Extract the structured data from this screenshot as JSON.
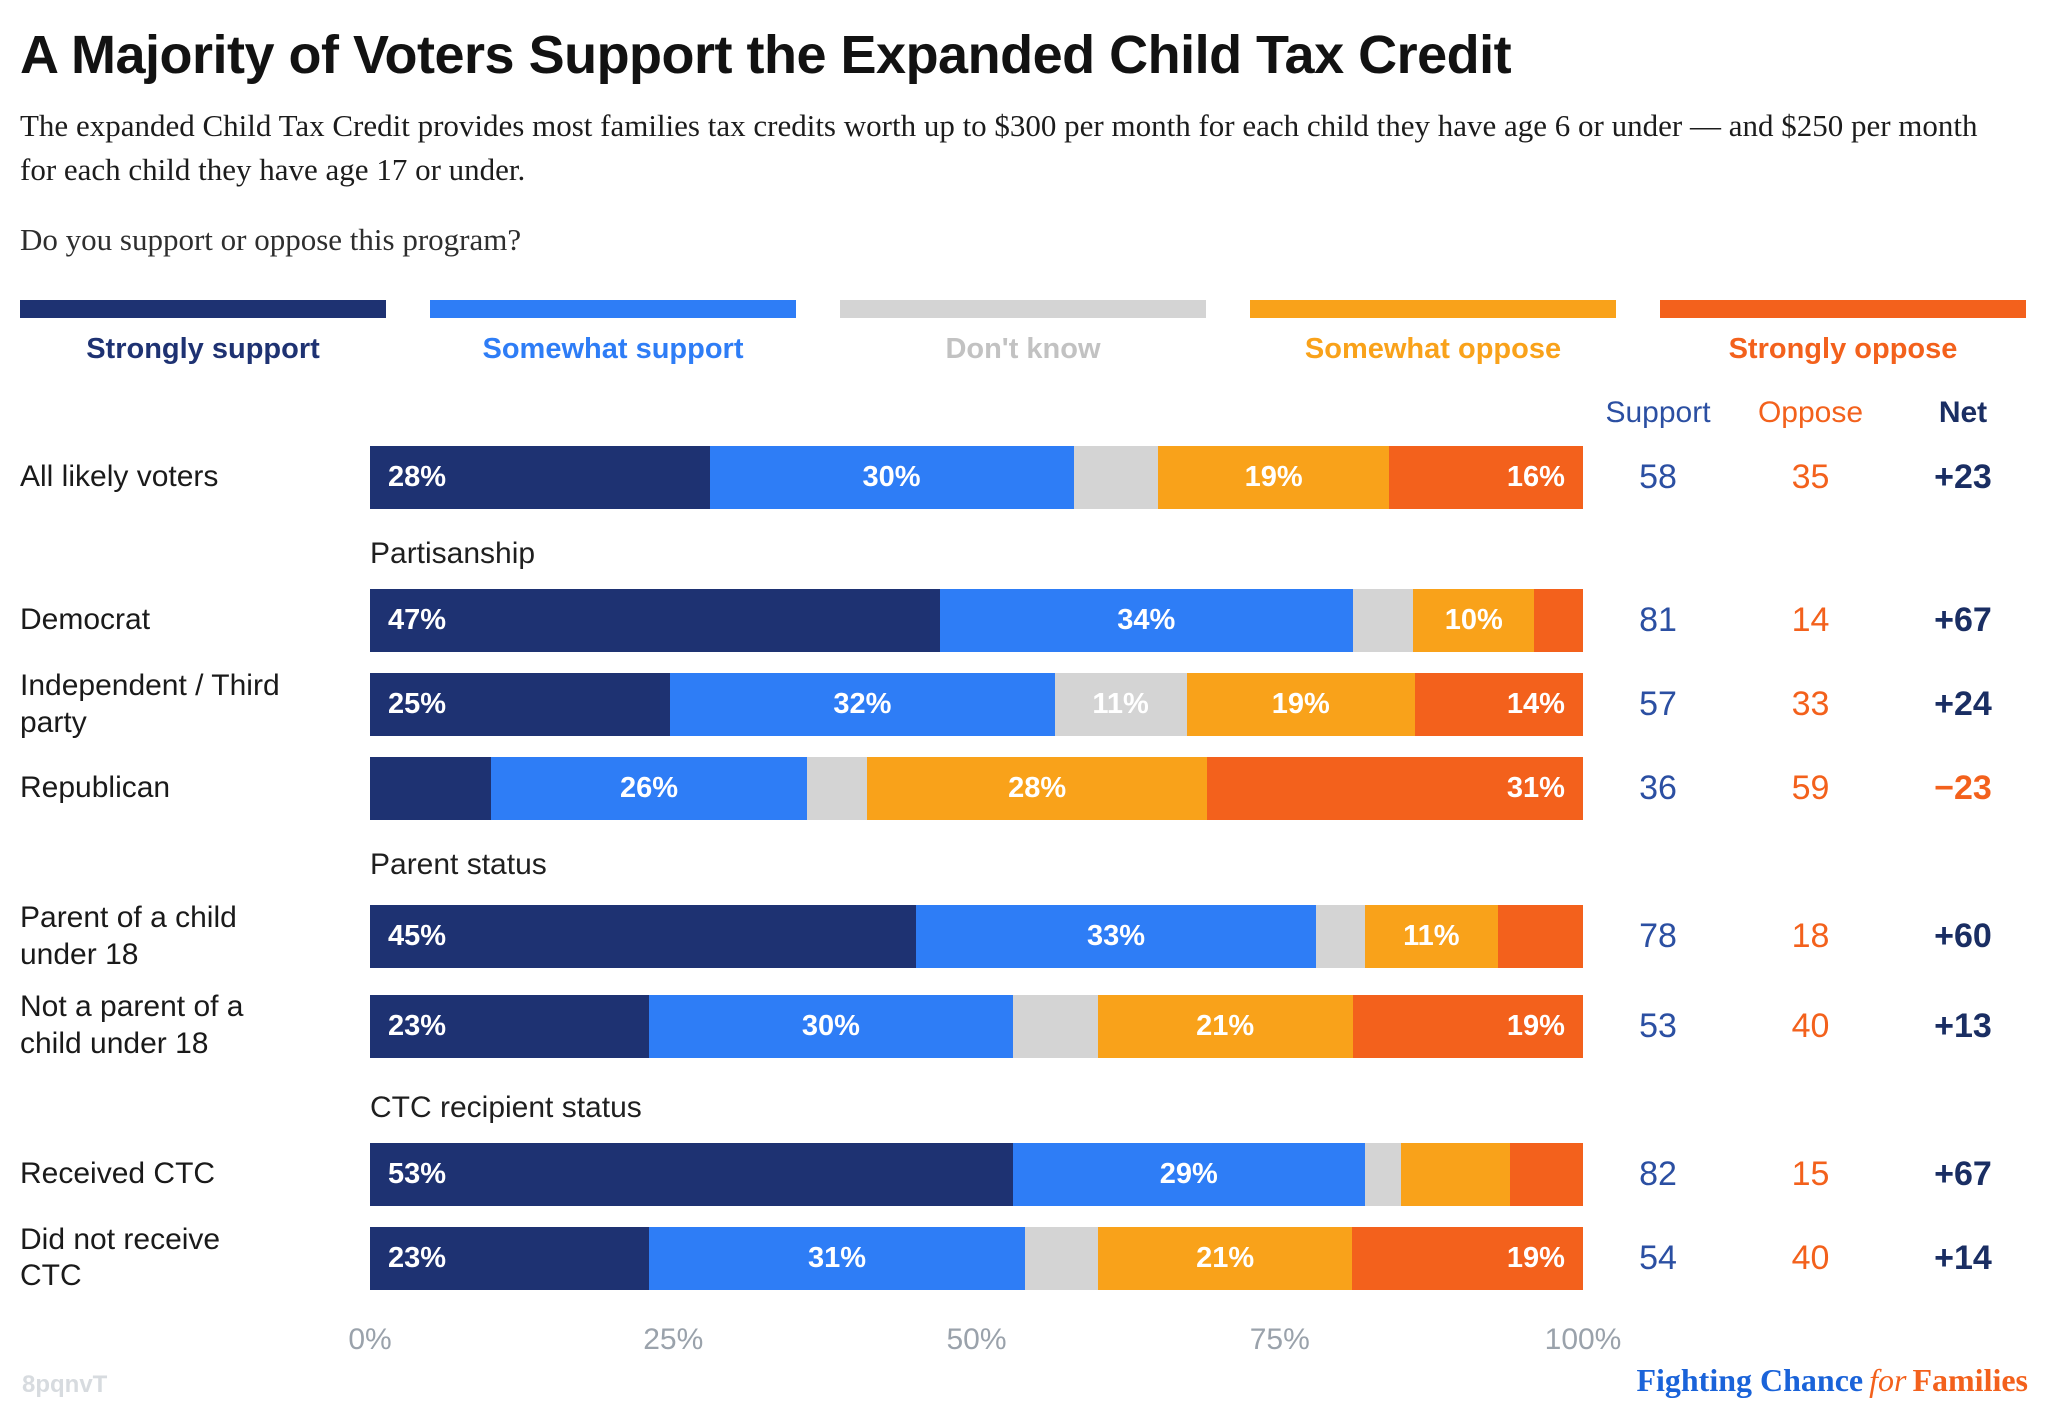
{
  "header": {
    "title": "A Majority of Voters Support the Expanded Child Tax Credit",
    "subtitle": "The expanded Child Tax Credit provides most families tax credits worth up to $300 per month for each child they have age 6 or under — and $250 per month for each child they have age 17 or under.",
    "question": "Do you support or oppose this program?"
  },
  "legend": [
    {
      "label": "Strongly support",
      "color": "#1e3272",
      "text_color": "#1e3272"
    },
    {
      "label": "Somewhat support",
      "color": "#2e7df6",
      "text_color": "#2e7df6"
    },
    {
      "label": "Don't know",
      "color": "#d4d4d4",
      "text_color": "#c2c2c2"
    },
    {
      "label": "Somewhat oppose",
      "color": "#f9a21a",
      "text_color": "#f9a21a"
    },
    {
      "label": "Strongly oppose",
      "color": "#f3611c",
      "text_color": "#f3611c"
    }
  ],
  "columns": {
    "support": "Support",
    "oppose": "Oppose",
    "net": "Net"
  },
  "chart_data": {
    "type": "bar",
    "stacked": true,
    "orientation": "horizontal",
    "title": "A Majority of Voters Support the Expanded Child Tax Credit",
    "xlim": [
      0,
      100
    ],
    "axis_ticks": [
      "0%",
      "25%",
      "50%",
      "75%",
      "100%"
    ],
    "series_names": [
      "Strongly support",
      "Somewhat support",
      "Don't know",
      "Somewhat oppose",
      "Strongly oppose"
    ],
    "series_keys": [
      "strongly-support",
      "somewhat-support",
      "dont-know",
      "somewhat-oppose",
      "strongly-oppose"
    ],
    "colors": [
      "#1e3272",
      "#2e7df6",
      "#d4d4d4",
      "#f9a21a",
      "#f3611c"
    ],
    "groups": [
      {
        "section": null,
        "rows": [
          {
            "label": "All likely voters",
            "values": [
              28,
              30,
              7,
              19,
              16
            ],
            "segment_labels": [
              "28%",
              "30%",
              "",
              "19%",
              "16%"
            ],
            "support": "58",
            "oppose": "35",
            "net": "+23",
            "net_negative": false
          }
        ]
      },
      {
        "section": "Partisanship",
        "rows": [
          {
            "label": "Democrat",
            "values": [
              47,
              34,
              5,
              10,
              4
            ],
            "segment_labels": [
              "47%",
              "34%",
              "",
              "10%",
              ""
            ],
            "support": "81",
            "oppose": "14",
            "net": "+67",
            "net_negative": false
          },
          {
            "label": "Independent / Third party",
            "values": [
              25,
              32,
              11,
              19,
              14
            ],
            "segment_labels": [
              "25%",
              "32%",
              "11%",
              "19%",
              "14%"
            ],
            "support": "57",
            "oppose": "33",
            "net": "+24",
            "net_negative": false
          },
          {
            "label": "Republican",
            "values": [
              10,
              26,
              5,
              28,
              31
            ],
            "segment_labels": [
              "",
              "26%",
              "",
              "28%",
              "31%"
            ],
            "support": "36",
            "oppose": "59",
            "net": "−23",
            "net_negative": true
          }
        ]
      },
      {
        "section": "Parent status",
        "rows": [
          {
            "label": "Parent of a child under 18",
            "values": [
              45,
              33,
              4,
              11,
              7
            ],
            "segment_labels": [
              "45%",
              "33%",
              "",
              "11%",
              ""
            ],
            "support": "78",
            "oppose": "18",
            "net": "+60",
            "net_negative": false
          },
          {
            "label": "Not a parent of a child under 18",
            "values": [
              23,
              30,
              7,
              21,
              19
            ],
            "segment_labels": [
              "23%",
              "30%",
              "",
              "21%",
              "19%"
            ],
            "support": "53",
            "oppose": "40",
            "net": "+13",
            "net_negative": false
          }
        ]
      },
      {
        "section": "CTC recipient status",
        "rows": [
          {
            "label": "Received CTC",
            "values": [
              53,
              29,
              3,
              9,
              6
            ],
            "segment_labels": [
              "53%",
              "29%",
              "",
              "",
              ""
            ],
            "support": "82",
            "oppose": "15",
            "net": "+67",
            "net_negative": false
          },
          {
            "label": "Did not receive CTC",
            "values": [
              23,
              31,
              6,
              21,
              19
            ],
            "segment_labels": [
              "23%",
              "31%",
              "",
              "21%",
              "19%"
            ],
            "support": "54",
            "oppose": "40",
            "net": "+14",
            "net_negative": false
          }
        ]
      }
    ]
  },
  "footer": {
    "watermark": "8pqnvT",
    "logo": {
      "part1": "Fighting Chance",
      "part2": "for",
      "part3": "Families"
    }
  }
}
